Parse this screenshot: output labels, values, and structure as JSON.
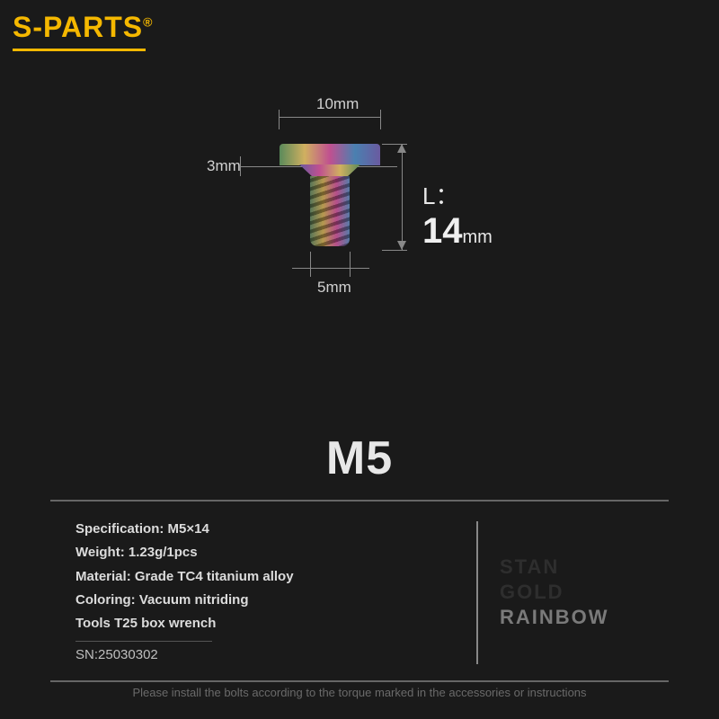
{
  "brand": {
    "s": "S",
    "sep": "-",
    "parts": "PARTS",
    "reg": "®"
  },
  "diagram": {
    "head_width": "10mm",
    "head_height": "3mm",
    "shaft_diameter": "5mm",
    "length_prefix": "L：",
    "length_value": "14",
    "length_unit": "mm"
  },
  "title": "M5",
  "specs": {
    "specification": {
      "label": "Specification:",
      "value": "M5×14"
    },
    "weight": {
      "label": "Weight:",
      "value": "1.23g/1pcs"
    },
    "material": {
      "label": "Material:",
      "value": "Grade TC4 titanium alloy"
    },
    "coloring": {
      "label": "Coloring:",
      "value": "Vacuum nitriding"
    },
    "tools": {
      "label": "Tools",
      "value": "T25 box wrench"
    },
    "sn": {
      "label": "SN:",
      "value": "25030302"
    }
  },
  "color_options": {
    "ghost1": "STAN",
    "ghost2": "GOLD",
    "active": "RAINBOW"
  },
  "footer": "Please install the bolts according to the torque marked in the accessories or instructions"
}
